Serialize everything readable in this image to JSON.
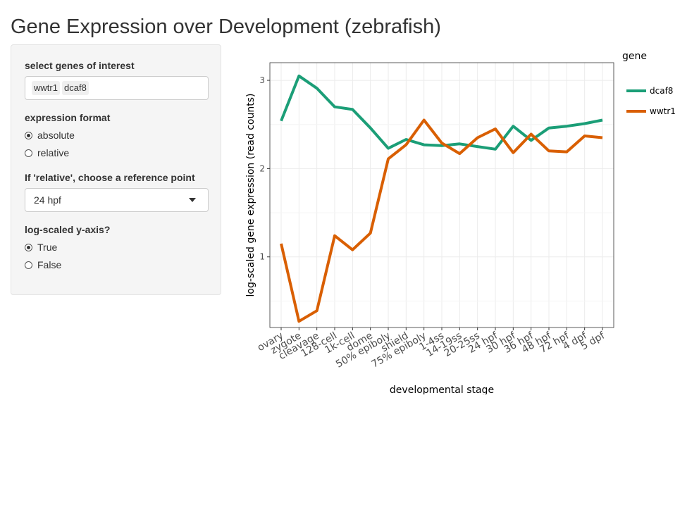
{
  "page": {
    "title": "Gene Expression over Development (zebrafish)"
  },
  "sidebar": {
    "genes_label": "select genes of interest",
    "selected_genes": [
      "wwtr1",
      "dcaf8"
    ],
    "format_label": "expression format",
    "format_options": [
      {
        "label": "absolute",
        "checked": true
      },
      {
        "label": "relative",
        "checked": false
      }
    ],
    "reference_label": "If 'relative', choose a reference point",
    "reference_value": "24 hpf",
    "log_label": "log-scaled y-axis?",
    "log_options": [
      {
        "label": "True",
        "checked": true
      },
      {
        "label": "False",
        "checked": false
      }
    ]
  },
  "colors": {
    "dcaf8": "#1b9e77",
    "wwtr1": "#d95f02"
  },
  "chart_data": {
    "type": "line",
    "title": "",
    "xlabel": "developmental stage",
    "ylabel": "log-scaled gene expression (read counts)",
    "categories": [
      "ovary",
      "zygote",
      "cleavage",
      "128-cell",
      "1k-cell",
      "dome",
      "50% epiboly",
      "shield",
      "75% epiboly",
      "1-4ss",
      "14-19ss",
      "20-25ss",
      "24 hpf",
      "30 hpf",
      "36 hpf",
      "48 hpf",
      "72 hpf",
      "4 dpf",
      "5 dpf"
    ],
    "ylim": [
      0.2,
      3.2
    ],
    "yticks": [
      1,
      2,
      3
    ],
    "grid": true,
    "legend_title": "gene",
    "legend_position": "right",
    "series": [
      {
        "name": "dcaf8",
        "values": [
          2.54,
          3.05,
          2.91,
          2.7,
          2.67,
          2.46,
          2.23,
          2.33,
          2.27,
          2.26,
          2.28,
          2.25,
          2.22,
          2.48,
          2.32,
          2.46,
          2.48,
          2.51,
          2.55
        ]
      },
      {
        "name": "wwtr1",
        "values": [
          1.15,
          0.27,
          0.39,
          1.24,
          1.08,
          1.27,
          2.11,
          2.27,
          2.55,
          2.29,
          2.17,
          2.35,
          2.45,
          2.18,
          2.39,
          2.2,
          2.19,
          2.37,
          2.35
        ]
      }
    ]
  }
}
